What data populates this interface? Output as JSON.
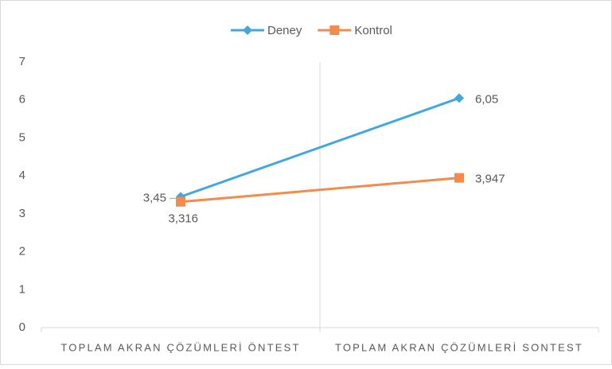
{
  "chart_data": {
    "type": "line",
    "categories": [
      "TOPLAM AKRAN ÇÖZÜMLERİ ÖNTEST",
      "TOPLAM AKRAN ÇÖZÜMLERİ SONTEST"
    ],
    "series": [
      {
        "name": "Deney",
        "color": "#41a8dd",
        "marker": "diamond",
        "values": [
          3.45,
          6.05
        ],
        "value_labels": [
          "3,45",
          "6,05"
        ]
      },
      {
        "name": "Kontrol",
        "color": "#f28b4c",
        "marker": "square",
        "values": [
          3.316,
          3.947
        ],
        "value_labels": [
          "3,316",
          "3,947"
        ]
      }
    ],
    "ylim": [
      0,
      7
    ],
    "yticks": [
      0,
      1,
      2,
      3,
      4,
      5,
      6,
      7
    ],
    "grid": false,
    "legend": "top"
  }
}
